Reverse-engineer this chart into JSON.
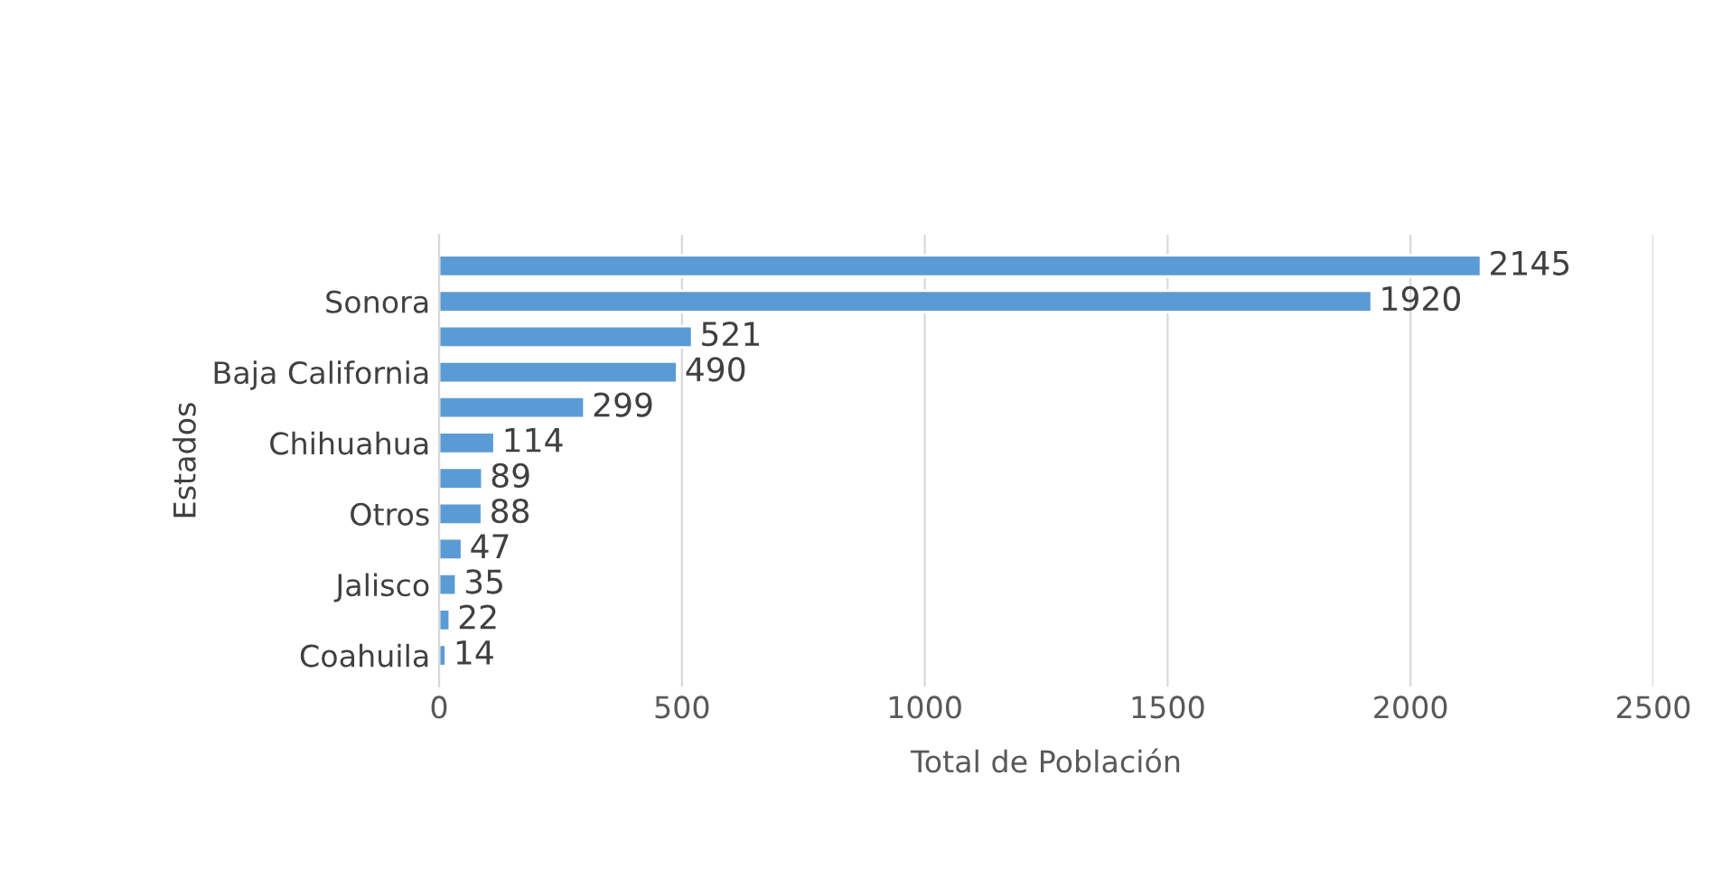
{
  "chart_data": {
    "type": "bar",
    "orientation": "horizontal",
    "xlabel": "Total de Población",
    "ylabel": "Estados",
    "categories": [
      null,
      "Sonora",
      null,
      "Baja California",
      null,
      "Chihuahua",
      null,
      "Otros",
      null,
      "Jalisco",
      null,
      "Coahuila"
    ],
    "values": [
      2145,
      1920,
      521,
      490,
      299,
      114,
      89,
      88,
      47,
      35,
      22,
      14
    ],
    "color": "#5b9bd5",
    "xlim": [
      0,
      2500
    ],
    "xticks": [
      0,
      500,
      1000,
      1500,
      2000,
      2500
    ],
    "grid": "x",
    "data_labels": true,
    "legend": false
  }
}
